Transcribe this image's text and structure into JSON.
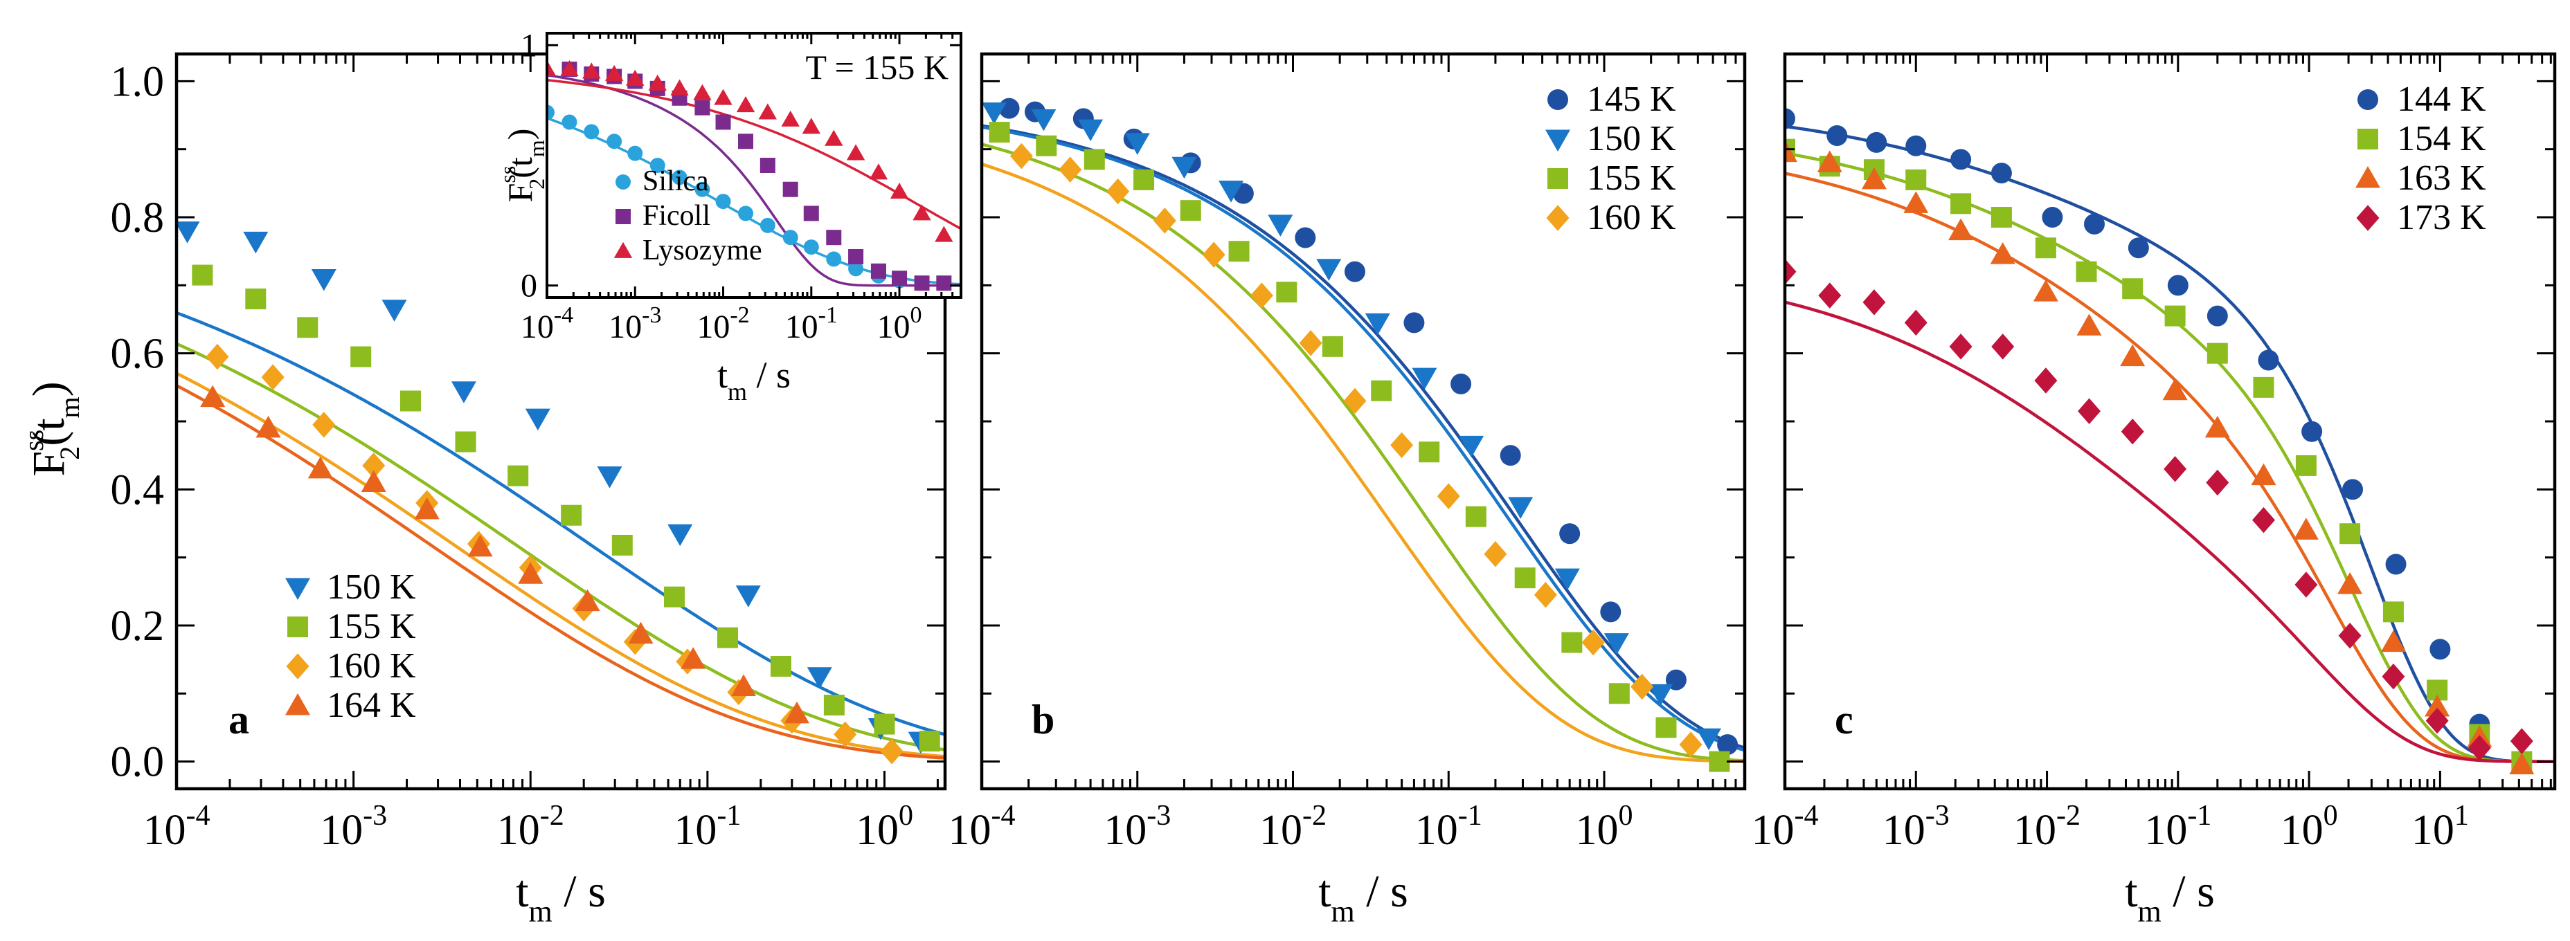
{
  "figure": {
    "colors": {
      "blue": "#1976c8",
      "green": "#8cbc1e",
      "orange": "#f3a21b",
      "dark_orange": "#e8641c",
      "navy": "#1f4fa0",
      "red": "#c0143c",
      "purple": "#7b2a8e",
      "cyan": "#2aa3dc",
      "crimson": "#d9203a"
    },
    "shared_axis_label": "t",
    "shared_axis_sub": "m",
    "shared_axis_unit": " / s",
    "ylabel": {
      "main": "F",
      "sup": "ss",
      "sub": "2",
      "arg": "(t",
      "argsub": "m",
      "close": ")"
    }
  },
  "chart_data": [
    {
      "type": "scatter",
      "panel": "a",
      "xscale": "log",
      "xlim": [
        0.0001,
        2.2
      ],
      "ylim": [
        -0.04,
        1.04
      ],
      "yticks": [
        "0.0",
        "0.2",
        "0.4",
        "0.6",
        "0.8",
        "1.0"
      ],
      "xticks": [
        {
          "base": "10",
          "exp": "-4"
        },
        {
          "base": "10",
          "exp": "-3"
        },
        {
          "base": "10",
          "exp": "-2"
        },
        {
          "base": "10",
          "exp": "-1"
        },
        {
          "base": "10",
          "exp": "0"
        }
      ],
      "legend_position": "bottom-left",
      "series": [
        {
          "name": "150 K",
          "marker": "tri-down",
          "color": "#1976c8",
          "x": [
            0.000115,
            0.00028,
            0.00068,
            0.0017,
            0.0042,
            0.011,
            0.028,
            0.07,
            0.17,
            0.43,
            0.95,
            1.6
          ],
          "y": [
            0.78,
            0.765,
            0.71,
            0.665,
            0.545,
            0.505,
            0.42,
            0.335,
            0.245,
            0.125,
            0.05,
            0.03
          ]
        },
        {
          "name": "155 K",
          "marker": "square",
          "color": "#8cbc1e",
          "x": [
            0.00014,
            0.00028,
            0.00055,
            0.0011,
            0.0021,
            0.0043,
            0.0085,
            0.017,
            0.033,
            0.065,
            0.13,
            0.26,
            0.52,
            1.0,
            1.8
          ],
          "y": [
            0.715,
            0.68,
            0.638,
            0.595,
            0.53,
            0.47,
            0.42,
            0.362,
            0.318,
            0.242,
            0.182,
            0.14,
            0.083,
            0.055,
            0.03
          ]
        },
        {
          "name": "160 K",
          "marker": "diamond",
          "color": "#f3a21b",
          "x": [
            0.00017,
            0.00035,
            0.00068,
            0.0013,
            0.0026,
            0.0051,
            0.01,
            0.02,
            0.039,
            0.077,
            0.15,
            0.3,
            0.6,
            1.1
          ],
          "y": [
            0.595,
            0.565,
            0.495,
            0.435,
            0.38,
            0.32,
            0.285,
            0.225,
            0.176,
            0.147,
            0.102,
            0.06,
            0.04,
            0.015
          ]
        },
        {
          "name": "164 K",
          "marker": "tri-up",
          "color": "#e8641c",
          "x": [
            0.00016,
            0.00033,
            0.00065,
            0.0013,
            0.0026,
            0.0052,
            0.01,
            0.021,
            0.042,
            0.083,
            0.16,
            0.32
          ],
          "y": [
            0.535,
            0.49,
            0.43,
            0.41,
            0.37,
            0.315,
            0.275,
            0.235,
            0.187,
            0.15,
            0.11,
            0.07
          ]
        }
      ],
      "fits": [
        {
          "color": "#1976c8",
          "a": 0.86,
          "tau": 0.0225,
          "beta": 0.245
        },
        {
          "color": "#8cbc1e",
          "a": 0.86,
          "tau": 0.0085,
          "beta": 0.245
        },
        {
          "color": "#f3a21b",
          "a": 0.86,
          "tau": 0.0038,
          "beta": 0.245
        },
        {
          "color": "#e8641c",
          "a": 0.86,
          "tau": 0.0028,
          "beta": 0.245
        }
      ],
      "annotation": "a"
    },
    {
      "type": "scatter",
      "panel": "b",
      "xscale": "log",
      "xlim": [
        0.0001,
        8
      ],
      "ylim": [
        -0.04,
        1.04
      ],
      "xticks": [
        {
          "base": "10",
          "exp": "-4"
        },
        {
          "base": "10",
          "exp": "-3"
        },
        {
          "base": "10",
          "exp": "-2"
        },
        {
          "base": "10",
          "exp": "-1"
        },
        {
          "base": "10",
          "exp": "0"
        }
      ],
      "legend_position": "top-right",
      "series": [
        {
          "name": "145 K",
          "marker": "circle",
          "color": "#1f4fa0",
          "x": [
            0.00015,
            0.00022,
            0.00045,
            0.00095,
            0.0022,
            0.0048,
            0.012,
            0.025,
            0.06,
            0.12,
            0.25,
            0.6,
            1.1,
            2.9,
            6.2
          ],
          "y": [
            0.96,
            0.955,
            0.945,
            0.915,
            0.88,
            0.835,
            0.77,
            0.72,
            0.645,
            0.555,
            0.45,
            0.335,
            0.22,
            0.12,
            0.025
          ]
        },
        {
          "name": "150 K",
          "marker": "tri-down",
          "color": "#1976c8",
          "x": [
            0.00012,
            0.00025,
            0.0005,
            0.001,
            0.002,
            0.004,
            0.0083,
            0.017,
            0.035,
            0.07,
            0.14,
            0.29,
            0.58,
            1.2,
            2.3,
            4.7
          ],
          "y": [
            0.955,
            0.945,
            0.93,
            0.91,
            0.875,
            0.84,
            0.79,
            0.725,
            0.645,
            0.565,
            0.465,
            0.375,
            0.27,
            0.175,
            0.1,
            0.035
          ]
        },
        {
          "name": "155 K",
          "marker": "square",
          "color": "#8cbc1e",
          "x": [
            0.00013,
            0.00026,
            0.00053,
            0.0011,
            0.0022,
            0.0045,
            0.0091,
            0.018,
            0.037,
            0.075,
            0.15,
            0.31,
            0.62,
            1.25,
            2.5,
            5.5
          ],
          "y": [
            0.925,
            0.905,
            0.885,
            0.855,
            0.81,
            0.75,
            0.69,
            0.61,
            0.545,
            0.455,
            0.36,
            0.27,
            0.175,
            0.1,
            0.05,
            0.0
          ]
        },
        {
          "name": "160 K",
          "marker": "diamond",
          "color": "#f3a21b",
          "x": [
            0.00018,
            0.00037,
            0.00075,
            0.0015,
            0.0031,
            0.0063,
            0.013,
            0.025,
            0.05,
            0.1,
            0.2,
            0.42,
            0.85,
            1.75,
            3.6
          ],
          "y": [
            0.89,
            0.87,
            0.838,
            0.795,
            0.745,
            0.685,
            0.615,
            0.53,
            0.465,
            0.39,
            0.305,
            0.245,
            0.175,
            0.11,
            0.025
          ]
        }
      ],
      "fits": [
        {
          "color": "#1f4fa0",
          "a": 0.975,
          "tau": 0.27,
          "beta": 0.4
        },
        {
          "color": "#1976c8",
          "a": 0.975,
          "tau": 0.24,
          "beta": 0.4
        },
        {
          "color": "#8cbc1e",
          "a": 0.975,
          "tau": 0.072,
          "beta": 0.4
        },
        {
          "color": "#f3a21b",
          "a": 0.96,
          "tau": 0.042,
          "beta": 0.4
        }
      ],
      "annotation": "b"
    },
    {
      "type": "scatter",
      "panel": "c",
      "xscale": "log",
      "xlim": [
        0.0001,
        75
      ],
      "ylim": [
        -0.04,
        1.04
      ],
      "xticks": [
        {
          "base": "10",
          "exp": "-4"
        },
        {
          "base": "10",
          "exp": "-3"
        },
        {
          "base": "10",
          "exp": "-2"
        },
        {
          "base": "10",
          "exp": "-1"
        },
        {
          "base": "10",
          "exp": "0"
        },
        {
          "base": "10",
          "exp": "1"
        }
      ],
      "legend_position": "top-right",
      "series": [
        {
          "name": "144 K",
          "marker": "circle",
          "color": "#1f4fa0",
          "x": [
            0.0001,
            0.00025,
            0.0005,
            0.001,
            0.0022,
            0.0045,
            0.011,
            0.023,
            0.05,
            0.1,
            0.2,
            0.49,
            1.05,
            2.15,
            4.6,
            10,
            20,
            42
          ],
          "y": [
            0.945,
            0.92,
            0.91,
            0.905,
            0.885,
            0.865,
            0.8,
            0.79,
            0.755,
            0.7,
            0.655,
            0.59,
            0.485,
            0.4,
            0.29,
            0.165,
            0.055,
            0.0
          ]
        },
        {
          "name": "154 K",
          "marker": "square",
          "color": "#8cbc1e",
          "x": [
            0.0001,
            0.00022,
            0.00048,
            0.001,
            0.0022,
            0.0045,
            0.0098,
            0.02,
            0.045,
            0.095,
            0.2,
            0.45,
            0.95,
            2.05,
            4.4,
            9.5,
            20,
            42
          ],
          "y": [
            0.9,
            0.875,
            0.87,
            0.855,
            0.82,
            0.8,
            0.755,
            0.72,
            0.695,
            0.655,
            0.6,
            0.55,
            0.435,
            0.335,
            0.22,
            0.105,
            0.04,
            0.0
          ]
        },
        {
          "name": "163 K",
          "marker": "tri-up",
          "color": "#e8641c",
          "x": [
            0.0001,
            0.00022,
            0.00048,
            0.001,
            0.0022,
            0.0046,
            0.0098,
            0.021,
            0.045,
            0.095,
            0.2,
            0.45,
            0.95,
            2.05,
            4.4,
            9.5,
            20,
            42
          ],
          "y": [
            0.895,
            0.88,
            0.855,
            0.82,
            0.78,
            0.745,
            0.69,
            0.64,
            0.595,
            0.545,
            0.49,
            0.42,
            0.34,
            0.26,
            0.175,
            0.08,
            0.035,
            -0.005
          ]
        },
        {
          "name": "173 K",
          "marker": "diamond",
          "color": "#c0143c",
          "x": [
            0.0001,
            0.00022,
            0.00048,
            0.001,
            0.0022,
            0.0046,
            0.0098,
            0.021,
            0.045,
            0.095,
            0.2,
            0.45,
            0.95,
            2.05,
            4.4,
            9.5,
            20,
            42
          ],
          "y": [
            0.72,
            0.685,
            0.675,
            0.645,
            0.61,
            0.61,
            0.56,
            0.515,
            0.485,
            0.43,
            0.41,
            0.355,
            0.26,
            0.185,
            0.125,
            0.06,
            0.02,
            0.03
          ]
        }
      ],
      "fits": [
        {
          "color": "#1f4fa0",
          "kind": "double",
          "a1": 0.2,
          "tau1": 0.01,
          "b1": 0.35,
          "a2": 0.77,
          "tau2": 3.0,
          "b2": 0.78
        },
        {
          "color": "#8cbc1e",
          "kind": "double",
          "a1": 0.25,
          "tau1": 0.01,
          "b1": 0.35,
          "a2": 0.69,
          "tau2": 2.1,
          "b2": 0.72
        },
        {
          "color": "#e8641c",
          "kind": "double",
          "a1": 0.3,
          "tau1": 0.01,
          "b1": 0.35,
          "a2": 0.62,
          "tau2": 1.5,
          "b2": 0.66
        },
        {
          "color": "#c0143c",
          "kind": "double",
          "a1": 0.35,
          "tau1": 0.01,
          "b1": 0.35,
          "a2": 0.39,
          "tau2": 1.2,
          "b2": 0.6
        }
      ],
      "annotation": "c"
    },
    {
      "type": "scatter",
      "panel": "inset",
      "xscale": "log",
      "xlim": [
        0.0001,
        5
      ],
      "ylim": [
        -0.05,
        1.05
      ],
      "yticks": [
        "0",
        "1"
      ],
      "xticks": [
        {
          "base": "10",
          "exp": "-4"
        },
        {
          "base": "10",
          "exp": "-3"
        },
        {
          "base": "10",
          "exp": "-2"
        },
        {
          "base": "10",
          "exp": "-1"
        },
        {
          "base": "10",
          "exp": "0"
        }
      ],
      "title": "T = 155 K",
      "legend_position": "center-left",
      "series": [
        {
          "name": "Silica",
          "marker": "circle",
          "color": "#2aa3dc",
          "x": [
            0.0001,
            0.00018,
            0.00032,
            0.00058,
            0.001,
            0.0018,
            0.0032,
            0.0058,
            0.01,
            0.018,
            0.032,
            0.058,
            0.1,
            0.18,
            0.32,
            0.58,
            1.0
          ],
          "y": [
            0.72,
            0.68,
            0.64,
            0.6,
            0.55,
            0.5,
            0.45,
            0.4,
            0.35,
            0.3,
            0.25,
            0.2,
            0.16,
            0.11,
            0.07,
            0.04,
            0.02
          ]
        },
        {
          "name": "Ficoll",
          "marker": "square",
          "color": "#7b2a8e",
          "x": [
            0.00018,
            0.00032,
            0.00058,
            0.001,
            0.0018,
            0.0032,
            0.0058,
            0.01,
            0.018,
            0.032,
            0.058,
            0.1,
            0.18,
            0.32,
            0.58,
            1.0,
            1.8,
            3.2
          ],
          "y": [
            0.9,
            0.88,
            0.87,
            0.85,
            0.82,
            0.78,
            0.74,
            0.68,
            0.6,
            0.5,
            0.4,
            0.3,
            0.2,
            0.12,
            0.06,
            0.03,
            0.01,
            0.01
          ]
        },
        {
          "name": "Lysozyme",
          "marker": "tri-up",
          "color": "#d9203a",
          "x": [
            0.0001,
            0.00018,
            0.00032,
            0.00058,
            0.001,
            0.0018,
            0.0032,
            0.0058,
            0.01,
            0.018,
            0.032,
            0.058,
            0.1,
            0.18,
            0.32,
            0.58,
            1.0,
            1.8,
            3.2
          ],
          "y": [
            0.9,
            0.9,
            0.89,
            0.88,
            0.86,
            0.84,
            0.82,
            0.8,
            0.78,
            0.75,
            0.72,
            0.69,
            0.66,
            0.61,
            0.55,
            0.47,
            0.39,
            0.3,
            0.21
          ]
        }
      ],
      "fits": [
        {
          "color": "#2aa3dc",
          "a": 0.95,
          "tau": 0.009,
          "beta": 0.26
        },
        {
          "color": "#7b2a8e",
          "kind": "double",
          "a1": 0.3,
          "tau1": 0.004,
          "b1": 0.45,
          "a2": 0.63,
          "tau2": 0.045,
          "b2": 0.9
        },
        {
          "color": "#d9203a",
          "a": 0.92,
          "tau": 1.6,
          "beta": 0.27
        }
      ]
    }
  ]
}
